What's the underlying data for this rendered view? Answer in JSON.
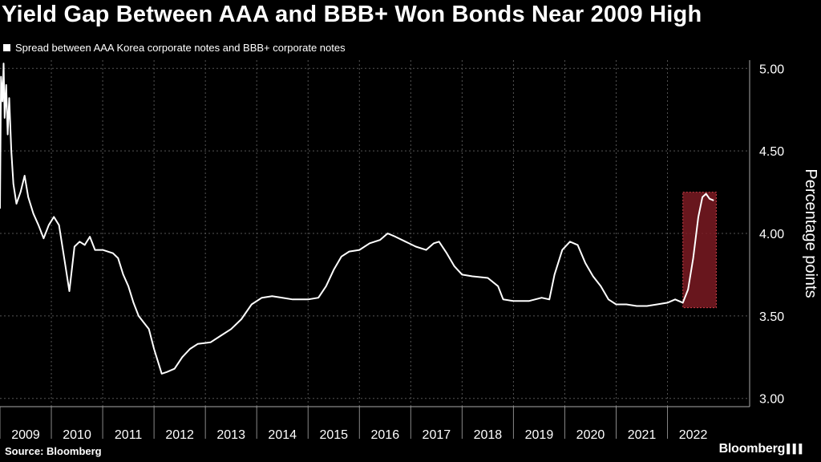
{
  "chart_data": {
    "type": "line",
    "title": "Yield Gap Between AAA and BBB+ Won Bonds Near 2009 High",
    "legend": {
      "label": "Spread between AAA Korea corporate notes and BBB+ corporate notes",
      "placement": "top-left"
    },
    "ylabel": "Percentage points",
    "ylim": [
      2.95,
      5.05
    ],
    "yticks": [
      "3.00",
      "3.50",
      "4.00",
      "4.50",
      "5.00"
    ],
    "xlim": [
      2009.0,
      2023.6
    ],
    "xticks": [
      "2009",
      "2010",
      "2011",
      "2012",
      "2013",
      "2014",
      "2015",
      "2016",
      "2017",
      "2018",
      "2019",
      "2020",
      "2021",
      "2022"
    ],
    "grid": true,
    "series": [
      {
        "values": [
          [
            2009.0,
            4.15
          ],
          [
            2009.02,
            4.95
          ],
          [
            2009.05,
            4.8
          ],
          [
            2009.07,
            5.03
          ],
          [
            2009.09,
            4.7
          ],
          [
            2009.12,
            4.9
          ],
          [
            2009.15,
            4.6
          ],
          [
            2009.18,
            4.82
          ],
          [
            2009.22,
            4.5
          ],
          [
            2009.26,
            4.3
          ],
          [
            2009.32,
            4.18
          ],
          [
            2009.4,
            4.25
          ],
          [
            2009.48,
            4.35
          ],
          [
            2009.55,
            4.22
          ],
          [
            2009.65,
            4.12
          ],
          [
            2009.75,
            4.05
          ],
          [
            2009.85,
            3.97
          ],
          [
            2009.95,
            4.05
          ],
          [
            2010.05,
            4.1
          ],
          [
            2010.15,
            4.05
          ],
          [
            2010.25,
            3.85
          ],
          [
            2010.35,
            3.65
          ],
          [
            2010.45,
            3.92
          ],
          [
            2010.55,
            3.95
          ],
          [
            2010.65,
            3.93
          ],
          [
            2010.75,
            3.98
          ],
          [
            2010.85,
            3.9
          ],
          [
            2011.0,
            3.9
          ],
          [
            2011.2,
            3.88
          ],
          [
            2011.3,
            3.85
          ],
          [
            2011.4,
            3.75
          ],
          [
            2011.5,
            3.68
          ],
          [
            2011.6,
            3.58
          ],
          [
            2011.7,
            3.5
          ],
          [
            2011.8,
            3.46
          ],
          [
            2011.9,
            3.42
          ],
          [
            2012.0,
            3.3
          ],
          [
            2012.1,
            3.2
          ],
          [
            2012.15,
            3.15
          ],
          [
            2012.25,
            3.16
          ],
          [
            2012.4,
            3.18
          ],
          [
            2012.55,
            3.25
          ],
          [
            2012.7,
            3.3
          ],
          [
            2012.85,
            3.33
          ],
          [
            2013.1,
            3.34
          ],
          [
            2013.3,
            3.38
          ],
          [
            2013.5,
            3.42
          ],
          [
            2013.7,
            3.48
          ],
          [
            2013.9,
            3.57
          ],
          [
            2014.1,
            3.61
          ],
          [
            2014.3,
            3.62
          ],
          [
            2014.5,
            3.61
          ],
          [
            2014.7,
            3.6
          ],
          [
            2015.0,
            3.6
          ],
          [
            2015.2,
            3.61
          ],
          [
            2015.35,
            3.68
          ],
          [
            2015.5,
            3.78
          ],
          [
            2015.65,
            3.86
          ],
          [
            2015.8,
            3.89
          ],
          [
            2016.0,
            3.9
          ],
          [
            2016.2,
            3.94
          ],
          [
            2016.4,
            3.96
          ],
          [
            2016.55,
            4.0
          ],
          [
            2016.7,
            3.98
          ],
          [
            2016.9,
            3.95
          ],
          [
            2017.1,
            3.92
          ],
          [
            2017.3,
            3.9
          ],
          [
            2017.45,
            3.94
          ],
          [
            2017.55,
            3.95
          ],
          [
            2017.7,
            3.88
          ],
          [
            2017.85,
            3.8
          ],
          [
            2018.0,
            3.75
          ],
          [
            2018.2,
            3.74
          ],
          [
            2018.5,
            3.73
          ],
          [
            2018.7,
            3.68
          ],
          [
            2018.8,
            3.6
          ],
          [
            2019.0,
            3.59
          ],
          [
            2019.3,
            3.59
          ],
          [
            2019.55,
            3.61
          ],
          [
            2019.7,
            3.6
          ],
          [
            2019.8,
            3.75
          ],
          [
            2019.95,
            3.9
          ],
          [
            2020.1,
            3.95
          ],
          [
            2020.25,
            3.93
          ],
          [
            2020.4,
            3.82
          ],
          [
            2020.55,
            3.74
          ],
          [
            2020.7,
            3.68
          ],
          [
            2020.85,
            3.6
          ],
          [
            2021.0,
            3.57
          ],
          [
            2021.2,
            3.57
          ],
          [
            2021.4,
            3.56
          ],
          [
            2021.6,
            3.56
          ],
          [
            2021.8,
            3.57
          ],
          [
            2022.0,
            3.58
          ],
          [
            2022.15,
            3.6
          ],
          [
            2022.3,
            3.58
          ],
          [
            2022.4,
            3.66
          ],
          [
            2022.5,
            3.85
          ],
          [
            2022.6,
            4.1
          ],
          [
            2022.68,
            4.22
          ],
          [
            2022.75,
            4.24
          ],
          [
            2022.82,
            4.21
          ],
          [
            2022.9,
            4.2
          ]
        ]
      }
    ],
    "highlight": {
      "x": [
        2022.3,
        2022.95
      ],
      "y": [
        3.55,
        4.25
      ],
      "color": "#7a1a22",
      "border": "#d0404a"
    },
    "line_color": "#ffffff"
  },
  "footer": {
    "source": "Source: Bloomberg",
    "brand": "Bloomberg"
  }
}
